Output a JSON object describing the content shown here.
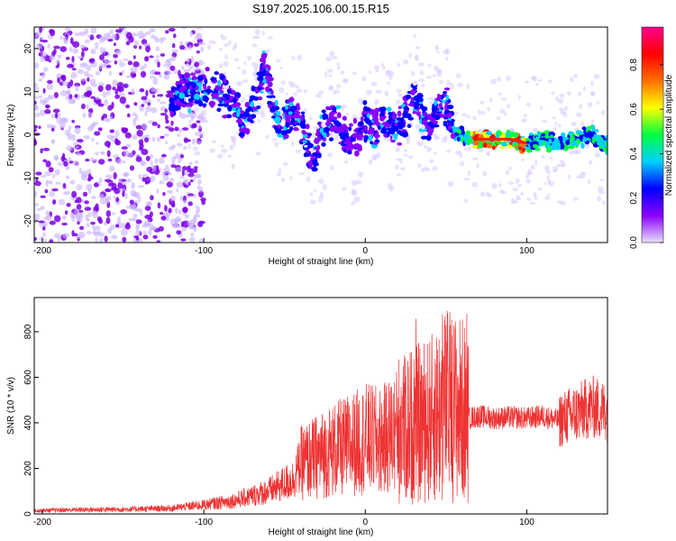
{
  "title": "S197.2025.106.00.15.R15",
  "chart_data": [
    {
      "type": "heatmap",
      "xlabel": "Height of straight line (km)",
      "ylabel": "Frequency (Hz)",
      "xlim": [
        -205,
        150
      ],
      "ylim": [
        -25,
        25
      ],
      "xticks": [
        -200,
        -100,
        0,
        100
      ],
      "yticks": [
        -20,
        -10,
        0,
        10,
        20
      ],
      "colorbar": {
        "label": "Normalized spectral amplitude",
        "range": [
          0,
          0.97
        ],
        "ticks": [
          0.0,
          0.2,
          0.4,
          0.6,
          0.8
        ],
        "colormap": [
          "#e8e0ff",
          "#8a00ff",
          "#0000ff",
          "#00d0ff",
          "#00ff40",
          "#ffff00",
          "#ff7000",
          "#ff0000",
          "#ff0090"
        ]
      },
      "ridge": {
        "x": [
          -120,
          -110,
          -100,
          -90,
          -80,
          -75,
          -70,
          -65,
          -62,
          -60,
          -58,
          -55,
          -50,
          -45,
          -40,
          -35,
          -32,
          -30,
          -25,
          -20,
          -15,
          -10,
          -5,
          0,
          5,
          10,
          15,
          20,
          25,
          30,
          35,
          40,
          45,
          50,
          55,
          60,
          65,
          70,
          80,
          90,
          100,
          110,
          120,
          130,
          140,
          150
        ],
        "y": [
          8,
          10,
          11,
          10,
          7,
          1,
          6,
          12,
          17,
          12,
          8,
          5,
          3,
          5,
          3,
          -3,
          -6,
          -3,
          2,
          4,
          1,
          -2,
          0,
          3,
          1,
          3,
          2,
          2,
          4,
          9,
          5,
          2,
          8,
          7,
          1,
          0,
          -1,
          -1,
          -1,
          -1,
          -2,
          -1,
          -2,
          -1,
          0,
          -3
        ]
      },
      "noise_region_x": [
        -205,
        -110
      ]
    },
    {
      "type": "line",
      "xlabel": "Height of straight line (km)",
      "ylabel": "SNR (10 * v/v)",
      "xlim": [
        -205,
        150
      ],
      "ylim": [
        0,
        950
      ],
      "xticks": [
        -200,
        -100,
        0,
        100
      ],
      "yticks": [
        0,
        200,
        400,
        600,
        800
      ],
      "series": [
        {
          "color": "#ee3333",
          "x": [
            -205,
            -180,
            -150,
            -120,
            -100,
            -80,
            -60,
            -45,
            -40,
            -30,
            -20,
            -10,
            0,
            10,
            20,
            30,
            40,
            50,
            60,
            64,
            70,
            80,
            90,
            100,
            110,
            120,
            130,
            140,
            150
          ],
          "y": [
            15,
            18,
            20,
            25,
            40,
            60,
            100,
            150,
            220,
            250,
            280,
            300,
            330,
            320,
            370,
            390,
            410,
            480,
            460,
            420,
            430,
            420,
            425,
            420,
            430,
            410,
            440,
            470,
            450
          ]
        }
      ]
    }
  ]
}
